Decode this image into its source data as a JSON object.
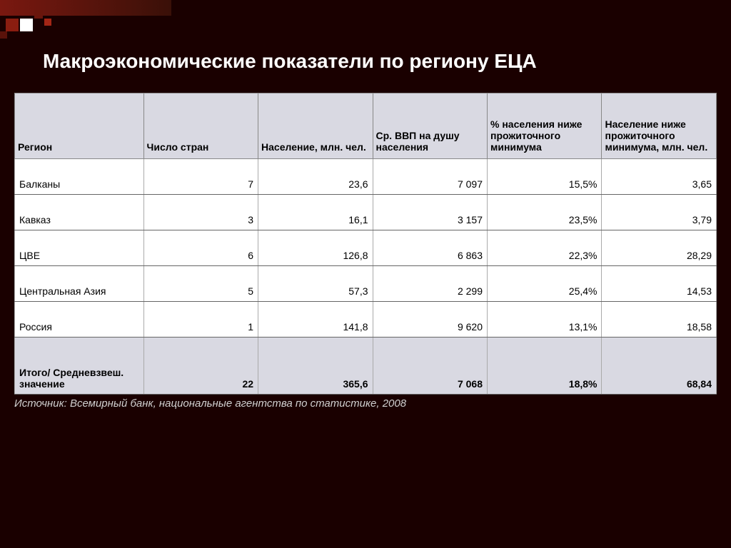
{
  "title": "Макроэкономические показатели по региону ЕЦА",
  "table": {
    "columns": [
      "Регион",
      "Число стран",
      "Население, млн. чел.",
      "Ср. ВВП на душу населения",
      "% населения ниже прожиточного минимума",
      "Население ниже прожиточного минимума, млн. чел."
    ],
    "rows": [
      {
        "region": "Балканы",
        "count": "7",
        "pop": "23,6",
        "gdp": "7 097",
        "pct": "15,5%",
        "poor": "3,65"
      },
      {
        "region": "Кавказ",
        "count": "3",
        "pop": "16,1",
        "gdp": "3 157",
        "pct": "23,5%",
        "poor": "3,79"
      },
      {
        "region": "ЦВЕ",
        "count": "6",
        "pop": "126,8",
        "gdp": "6 863",
        "pct": "22,3%",
        "poor": "28,29"
      },
      {
        "region": "Центральная Азия",
        "count": "5",
        "pop": "57,3",
        "gdp": "2 299",
        "pct": "25,4%",
        "poor": "14,53"
      },
      {
        "region": "Россия",
        "count": "1",
        "pop": "141,8",
        "gdp": "9 620",
        "pct": "13,1%",
        "poor": "18,58"
      }
    ],
    "total": {
      "region": "Итого/ Средневзвеш. значение",
      "count": "22",
      "pop": "365,6",
      "gdp": "7 068",
      "pct": "18,8%",
      "poor": "68,84"
    }
  },
  "source": "Источник: Всемирный банк, национальные агентства по статистике, 2008",
  "style": {
    "background_color": "#1a0000",
    "header_bg": "#d9d9e2",
    "cell_bg": "#ffffff",
    "text_color": "#000000",
    "title_color": "#ffffff",
    "accent_colors": [
      "#7a1810",
      "#8a1d10",
      "#ffffff",
      "#6a160c",
      "#a32616",
      "#5a120a"
    ],
    "title_fontsize": 28,
    "header_fontsize": 14,
    "cell_fontsize": 14
  }
}
